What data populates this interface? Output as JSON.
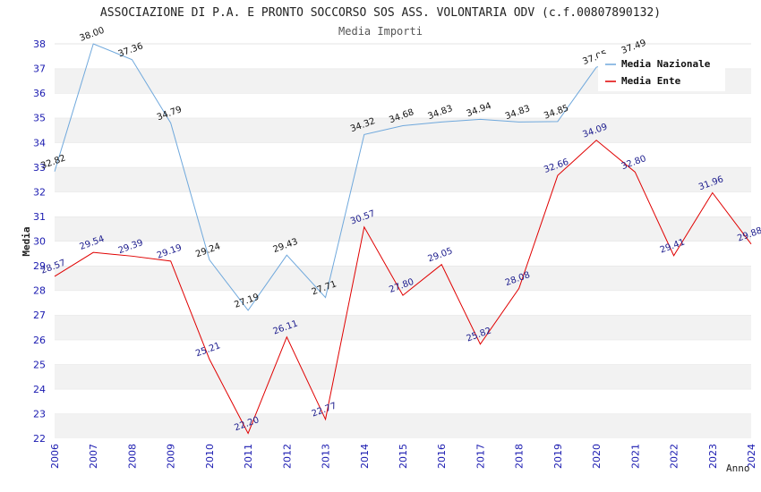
{
  "title": "ASSOCIAZIONE DI P.A. E PRONTO SOCCORSO SOS ASS. VOLONTARIA ODV (c.f.00807890132)",
  "subtitle": "Media Importi",
  "chart_data": {
    "type": "line",
    "title": "ASSOCIAZIONE DI P.A. E PRONTO SOCCORSO SOS ASS. VOLONTARIA ODV (c.f.00807890132)",
    "subtitle": "Media Importi",
    "xlabel": "Anno",
    "ylabel": "Media",
    "ylim": [
      22,
      38
    ],
    "yticks": [
      22,
      23,
      24,
      25,
      26,
      27,
      28,
      29,
      30,
      31,
      32,
      33,
      34,
      35,
      36,
      37,
      38
    ],
    "x": [
      "2006",
      "2007",
      "2008",
      "2009",
      "2010",
      "2011",
      "2012",
      "2013",
      "2014",
      "2015",
      "2016",
      "2017",
      "2018",
      "2019",
      "2020",
      "2021",
      "2022",
      "2023",
      "2024"
    ],
    "grid": "horizontal bands",
    "legend": "top-right",
    "series": [
      {
        "name": "Media Nazionale",
        "color": "#6fa8dc",
        "values": [
          32.82,
          38.0,
          37.36,
          34.79,
          29.24,
          27.19,
          29.43,
          27.71,
          34.32,
          34.68,
          34.83,
          34.94,
          34.83,
          34.85,
          37.05,
          37.49,
          null,
          null,
          null
        ],
        "labels": [
          "32.82",
          "38.00",
          "37.36",
          "34.79",
          "29.24",
          "27.19",
          "29.43",
          "27.71",
          "34.32",
          "34.68",
          "34.83",
          "34.94",
          "34.83",
          "34.85",
          "37.05",
          "37.49",
          "",
          "",
          ""
        ]
      },
      {
        "name": "Media Ente",
        "color": "#e00000",
        "values": [
          28.57,
          29.54,
          29.39,
          29.19,
          25.21,
          22.2,
          26.11,
          22.77,
          30.57,
          27.8,
          29.05,
          25.82,
          28.08,
          32.66,
          34.09,
          32.8,
          29.41,
          31.96,
          29.88
        ],
        "labels": [
          "28.57",
          "29.54",
          "29.39",
          "29.19",
          "25.21",
          "22.20",
          "26.11",
          "22.77",
          "30.57",
          "27.80",
          "29.05",
          "25.82",
          "28.08",
          "32.66",
          "34.09",
          "32.80",
          "29.41",
          "31.96",
          "29.88"
        ]
      }
    ]
  }
}
